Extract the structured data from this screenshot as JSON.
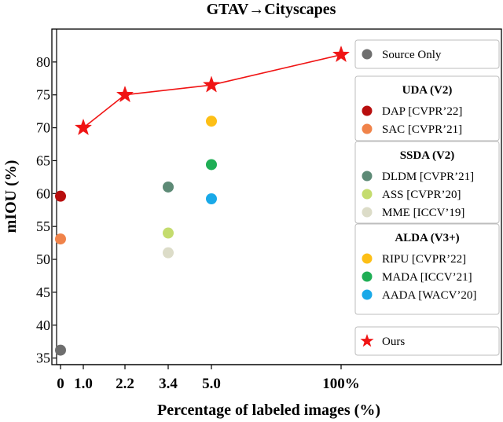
{
  "chart_data": {
    "type": "scatter",
    "title": "GTAV→Cityscapes",
    "xlabel": "Percentage of labeled images (%)",
    "ylabel": "mIOU (%)",
    "ylim": [
      34,
      85
    ],
    "yticks": [
      35,
      40,
      45,
      50,
      55,
      60,
      65,
      70,
      75,
      80
    ],
    "xticks": [
      "0",
      "1.0",
      "2.2",
      "3.4",
      "5.0",
      "100%"
    ],
    "grid": false,
    "legend_position": "right",
    "legend_groups": [
      {
        "heading": "",
        "items": [
          "Source Only"
        ]
      },
      {
        "heading": "UDA (V2)",
        "items": [
          "DAP [CVPR’22]",
          "SAC [CVPR’21]"
        ]
      },
      {
        "heading": "SSDA (V2)",
        "items": [
          "DLDM [CVPR’21]",
          "ASS [CVPR’20]",
          "MME [ICCV’19]"
        ]
      },
      {
        "heading": "ALDA (V3+)",
        "items": [
          "RIPU [CVPR’22]",
          "MADA [ICCV’21]",
          "AADA [WACV’20]"
        ]
      },
      {
        "heading": "",
        "items": [
          "Ours"
        ]
      }
    ],
    "series": [
      {
        "name": "Source Only",
        "color": "#6e6e6e",
        "marker": "circle",
        "points": [
          {
            "x": "0",
            "y": 36.2
          }
        ]
      },
      {
        "name": "DAP [CVPR’22]",
        "color": "#b80e0e",
        "marker": "circle",
        "points": [
          {
            "x": "0",
            "y": 59.6
          }
        ]
      },
      {
        "name": "SAC [CVPR’21]",
        "color": "#f0834a",
        "marker": "circle",
        "points": [
          {
            "x": "0",
            "y": 53.1
          }
        ]
      },
      {
        "name": "DLDM [CVPR’21]",
        "color": "#5d8a76",
        "marker": "circle",
        "points": [
          {
            "x": "3.4",
            "y": 61.0
          }
        ]
      },
      {
        "name": "ASS [CVPR’20]",
        "color": "#c4dc6e",
        "marker": "circle",
        "points": [
          {
            "x": "3.4",
            "y": 54.0
          }
        ]
      },
      {
        "name": "MME [ICCV’19]",
        "color": "#dcdcc8",
        "marker": "circle",
        "points": [
          {
            "x": "3.4",
            "y": 51.0
          }
        ]
      },
      {
        "name": "RIPU [CVPR’22]",
        "color": "#fdbf16",
        "marker": "circle",
        "points": [
          {
            "x": "5.0",
            "y": 71.0
          }
        ]
      },
      {
        "name": "MADA [ICCV’21]",
        "color": "#1fae55",
        "marker": "circle",
        "points": [
          {
            "x": "5.0",
            "y": 64.4
          }
        ]
      },
      {
        "name": "AADA [WACV’20]",
        "color": "#19a9e8",
        "marker": "circle",
        "points": [
          {
            "x": "5.0",
            "y": 59.2
          }
        ]
      },
      {
        "name": "Ours",
        "color": "#f01414",
        "marker": "star",
        "line": true,
        "points": [
          {
            "x": "1.0",
            "y": 70.0
          },
          {
            "x": "2.2",
            "y": 75.0
          },
          {
            "x": "5.0",
            "y": 76.5
          },
          {
            "x": "100%",
            "y": 81.1
          }
        ]
      }
    ]
  }
}
